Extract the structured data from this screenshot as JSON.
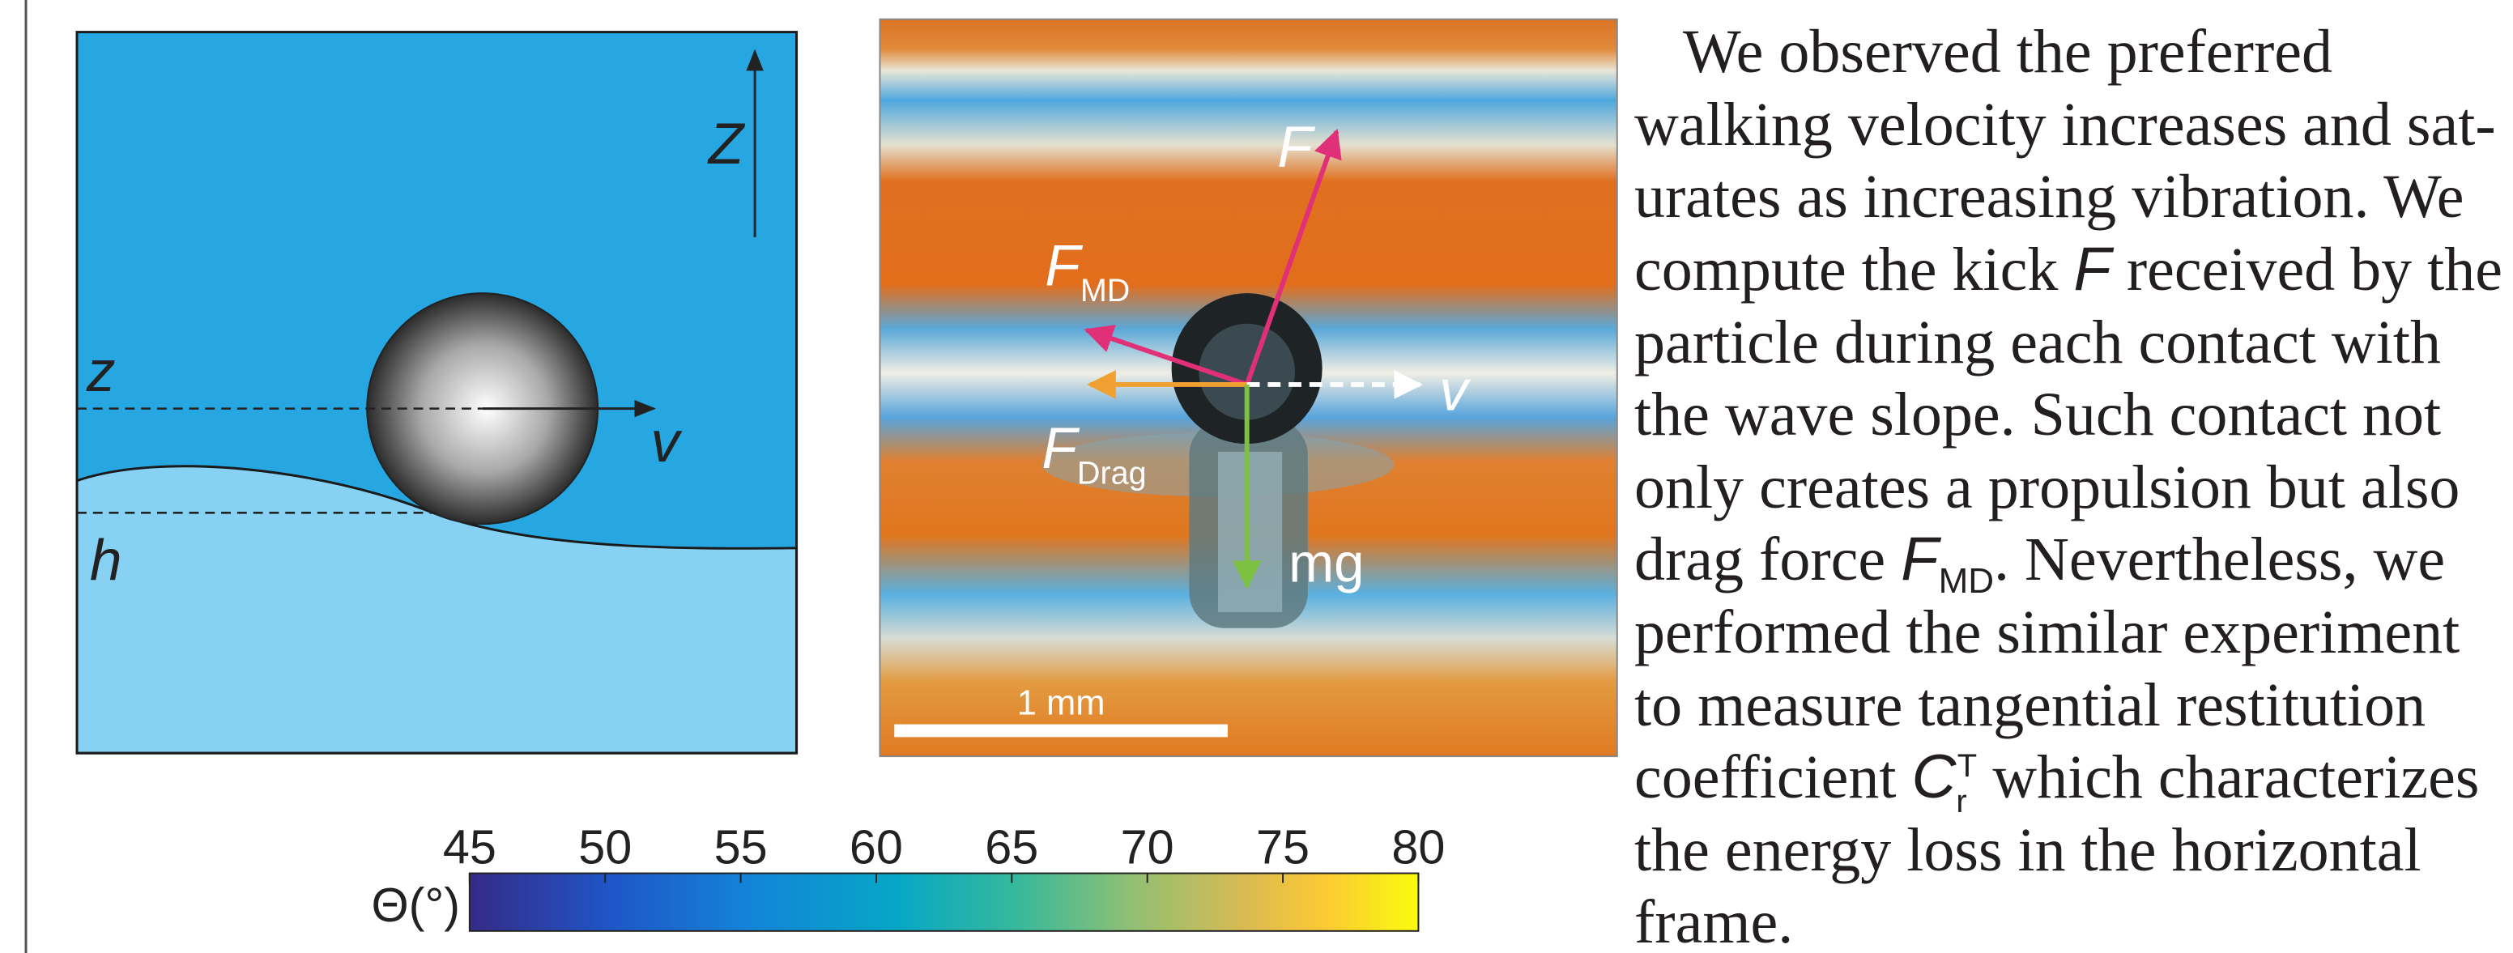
{
  "schematic": {
    "axis_label": "Z",
    "center_label": "z",
    "velocity_label": "v",
    "height_label": "h"
  },
  "photo": {
    "force_label": "F",
    "md_label": {
      "main": "F",
      "sub": "MD"
    },
    "drag_label": {
      "main": "F",
      "sub": "Drag"
    },
    "velocity_label": "v",
    "weight_label": "mg",
    "scale_bar": "1 mm"
  },
  "colorbar": {
    "label": "Θ(°)",
    "lim": [
      45,
      80
    ],
    "ticks": [
      45,
      50,
      55,
      60,
      65,
      70,
      75,
      80
    ]
  },
  "text": {
    "lines": [
      "We observed the preferred",
      "walking velocity increases and sat-",
      "urates as increasing vibration. We",
      [
        "compute the kick ",
        "F",
        " received by the"
      ],
      "particle during each contact with",
      "the wave slope. Such contact not",
      "only creates a propulsion but also",
      [
        "drag force ",
        "F",
        "MD",
        ". Nevertheless, we"
      ],
      "performed the similar experiment",
      "to measure tangential restitution",
      [
        "coefficient ",
        "C",
        "r",
        "T",
        " which characterizes"
      ],
      "the energy loss in the horizontal",
      "frame."
    ]
  }
}
